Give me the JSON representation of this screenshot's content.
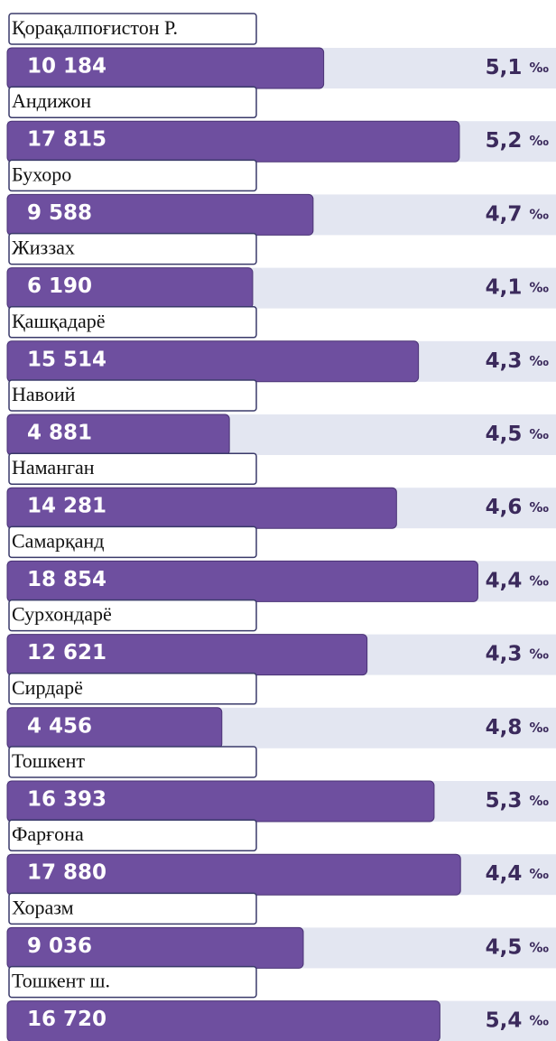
{
  "chart_data": {
    "type": "bar",
    "categories": [
      "Қорақалпоғистон Р.",
      "Андижон",
      "Бухоро",
      "Жиззах",
      "Қашқадарё",
      "Навоий",
      "Наманган",
      "Самарқанд",
      "Сурхондарё",
      "Сирдарё",
      "Тошкент",
      "Фарғона",
      "Хоразм",
      "Тошкент ш."
    ],
    "values": [
      10184,
      17815,
      9588,
      6190,
      15514,
      4881,
      14281,
      18854,
      12621,
      4456,
      16393,
      17880,
      9036,
      16720
    ],
    "value_labels": [
      "10 184",
      "17 815",
      "9 588",
      "6 190",
      "15 514",
      "4 881",
      "14 281",
      "18 854",
      "12 621",
      "4 456",
      "16 393",
      "17 880",
      "9 036",
      "16 720"
    ],
    "color": "#6e4f9f",
    "rates": {
      "values": [
        5.1,
        5.2,
        4.7,
        4.1,
        4.3,
        4.5,
        4.6,
        4.4,
        4.3,
        4.8,
        5.3,
        4.4,
        4.5,
        5.4
      ],
      "value_labels": [
        "5,1",
        "5,2",
        "4,7",
        "4,1",
        "4,3",
        "4,5",
        "4,6",
        "4,4",
        "4,3",
        "4,8",
        "5,3",
        "4,4",
        "4,5",
        "5,4"
      ]
    },
    "rate_unit": "‰"
  }
}
